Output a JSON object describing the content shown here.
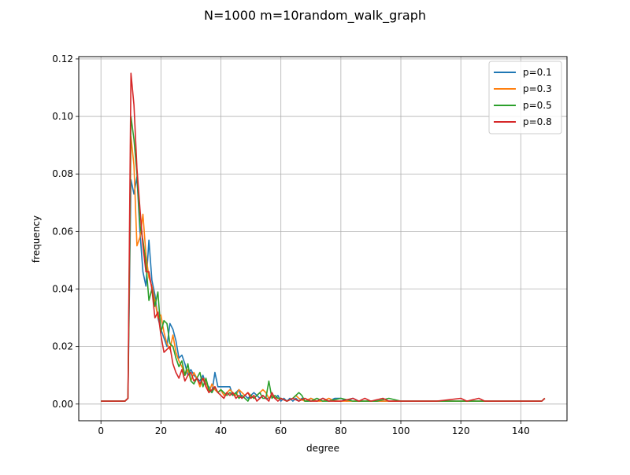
{
  "chart_data": {
    "type": "line",
    "title": "N=1000 m=10random_walk_graph",
    "xlabel": "degree",
    "ylabel": "frequency",
    "xlim": [
      -7.4,
      155.4
    ],
    "ylim": [
      -0.0058,
      0.1208
    ],
    "xticks": [
      0,
      20,
      40,
      60,
      80,
      100,
      120,
      140
    ],
    "xtick_labels": [
      "0",
      "20",
      "40",
      "60",
      "80",
      "100",
      "120",
      "140"
    ],
    "yticks": [
      0.0,
      0.02,
      0.04,
      0.06,
      0.08,
      0.1,
      0.12
    ],
    "ytick_labels": [
      "0.00",
      "0.02",
      "0.04",
      "0.06",
      "0.08",
      "0.10",
      "0.12"
    ],
    "grid": true,
    "legend_position": "top-right",
    "series": [
      {
        "name": "p=0.1",
        "color": "#1f77b4",
        "points": [
          [
            0,
            0.001
          ],
          [
            8,
            0.001
          ],
          [
            9,
            0.002
          ],
          [
            10,
            0.078
          ],
          [
            11,
            0.073
          ],
          [
            12,
            0.079
          ],
          [
            13,
            0.06
          ],
          [
            14,
            0.046
          ],
          [
            15,
            0.041
          ],
          [
            16,
            0.057
          ],
          [
            17,
            0.043
          ],
          [
            18,
            0.038
          ],
          [
            19,
            0.03
          ],
          [
            20,
            0.026
          ],
          [
            21,
            0.023
          ],
          [
            22,
            0.02
          ],
          [
            23,
            0.028
          ],
          [
            24,
            0.026
          ],
          [
            25,
            0.022
          ],
          [
            26,
            0.016
          ],
          [
            27,
            0.017
          ],
          [
            28,
            0.014
          ],
          [
            29,
            0.01
          ],
          [
            30,
            0.012
          ],
          [
            31,
            0.01
          ],
          [
            32,
            0.009
          ],
          [
            33,
            0.008
          ],
          [
            34,
            0.01
          ],
          [
            35,
            0.007
          ],
          [
            36,
            0.006
          ],
          [
            37,
            0.004
          ],
          [
            38,
            0.011
          ],
          [
            39,
            0.006
          ],
          [
            40,
            0.006
          ],
          [
            41,
            0.006
          ],
          [
            42,
            0.006
          ],
          [
            43,
            0.006
          ],
          [
            44,
            0.003
          ],
          [
            45,
            0.004
          ],
          [
            46,
            0.005
          ],
          [
            47,
            0.002
          ],
          [
            48,
            0.003
          ],
          [
            49,
            0.002
          ],
          [
            50,
            0.003
          ],
          [
            51,
            0.004
          ],
          [
            52,
            0.003
          ],
          [
            53,
            0.002
          ],
          [
            54,
            0.003
          ],
          [
            55,
            0.002
          ],
          [
            56,
            0.002
          ],
          [
            57,
            0.003
          ],
          [
            58,
            0.002
          ],
          [
            59,
            0.003
          ],
          [
            60,
            0.001
          ],
          [
            61,
            0.002
          ],
          [
            62,
            0.001
          ],
          [
            63,
            0.002
          ],
          [
            64,
            0.001
          ],
          [
            65,
            0.002
          ],
          [
            66,
            0.001
          ],
          [
            67,
            0.002
          ],
          [
            68,
            0.001
          ],
          [
            69,
            0.001
          ],
          [
            70,
            0.002
          ],
          [
            72,
            0.001
          ],
          [
            74,
            0.002
          ],
          [
            76,
            0.001
          ],
          [
            78,
            0.002
          ],
          [
            80,
            0.002
          ],
          [
            82,
            0.001
          ],
          [
            84,
            0.002
          ],
          [
            86,
            0.001
          ],
          [
            90,
            0.001
          ],
          [
            94,
            0.001
          ],
          [
            100,
            0.001
          ],
          [
            110,
            0.001
          ],
          [
            120,
            0.001
          ],
          [
            130,
            0.001
          ],
          [
            140,
            0.001
          ],
          [
            147,
            0.001
          ],
          [
            148,
            0.002
          ]
        ]
      },
      {
        "name": "p=0.3",
        "color": "#ff7f0e",
        "points": [
          [
            0,
            0.001
          ],
          [
            8,
            0.001
          ],
          [
            9,
            0.002
          ],
          [
            10,
            0.093
          ],
          [
            11,
            0.083
          ],
          [
            12,
            0.055
          ],
          [
            13,
            0.058
          ],
          [
            14,
            0.066
          ],
          [
            15,
            0.052
          ],
          [
            16,
            0.044
          ],
          [
            17,
            0.041
          ],
          [
            18,
            0.036
          ],
          [
            19,
            0.03
          ],
          [
            20,
            0.031
          ],
          [
            21,
            0.025
          ],
          [
            22,
            0.021
          ],
          [
            23,
            0.019
          ],
          [
            24,
            0.024
          ],
          [
            25,
            0.018
          ],
          [
            26,
            0.015
          ],
          [
            27,
            0.013
          ],
          [
            28,
            0.01
          ],
          [
            29,
            0.012
          ],
          [
            30,
            0.008
          ],
          [
            31,
            0.011
          ],
          [
            32,
            0.009
          ],
          [
            33,
            0.006
          ],
          [
            34,
            0.009
          ],
          [
            35,
            0.008
          ],
          [
            36,
            0.004
          ],
          [
            37,
            0.007
          ],
          [
            38,
            0.005
          ],
          [
            39,
            0.004
          ],
          [
            40,
            0.005
          ],
          [
            41,
            0.003
          ],
          [
            42,
            0.004
          ],
          [
            43,
            0.005
          ],
          [
            44,
            0.004
          ],
          [
            45,
            0.003
          ],
          [
            46,
            0.005
          ],
          [
            47,
            0.004
          ],
          [
            48,
            0.003
          ],
          [
            49,
            0.004
          ],
          [
            50,
            0.003
          ],
          [
            51,
            0.002
          ],
          [
            52,
            0.003
          ],
          [
            53,
            0.004
          ],
          [
            54,
            0.005
          ],
          [
            55,
            0.004
          ],
          [
            56,
            0.002
          ],
          [
            57,
            0.003
          ],
          [
            58,
            0.002
          ],
          [
            60,
            0.002
          ],
          [
            62,
            0.001
          ],
          [
            64,
            0.002
          ],
          [
            65,
            0.003
          ],
          [
            66,
            0.002
          ],
          [
            68,
            0.001
          ],
          [
            70,
            0.002
          ],
          [
            72,
            0.001
          ],
          [
            74,
            0.001
          ],
          [
            76,
            0.002
          ],
          [
            78,
            0.001
          ],
          [
            80,
            0.001
          ],
          [
            84,
            0.001
          ],
          [
            90,
            0.001
          ],
          [
            100,
            0.001
          ],
          [
            110,
            0.001
          ],
          [
            120,
            0.001
          ],
          [
            130,
            0.001
          ],
          [
            140,
            0.001
          ],
          [
            147,
            0.001
          ],
          [
            148,
            0.002
          ]
        ]
      },
      {
        "name": "p=0.5",
        "color": "#2ca02c",
        "points": [
          [
            0,
            0.001
          ],
          [
            8,
            0.001
          ],
          [
            9,
            0.002
          ],
          [
            10,
            0.1
          ],
          [
            11,
            0.092
          ],
          [
            12,
            0.08
          ],
          [
            13,
            0.062
          ],
          [
            14,
            0.057
          ],
          [
            15,
            0.049
          ],
          [
            16,
            0.036
          ],
          [
            17,
            0.04
          ],
          [
            18,
            0.034
          ],
          [
            19,
            0.039
          ],
          [
            20,
            0.025
          ],
          [
            21,
            0.029
          ],
          [
            22,
            0.028
          ],
          [
            23,
            0.021
          ],
          [
            24,
            0.02
          ],
          [
            25,
            0.016
          ],
          [
            26,
            0.013
          ],
          [
            27,
            0.015
          ],
          [
            28,
            0.01
          ],
          [
            29,
            0.014
          ],
          [
            30,
            0.008
          ],
          [
            31,
            0.007
          ],
          [
            32,
            0.009
          ],
          [
            33,
            0.011
          ],
          [
            34,
            0.006
          ],
          [
            35,
            0.009
          ],
          [
            36,
            0.005
          ],
          [
            37,
            0.004
          ],
          [
            38,
            0.006
          ],
          [
            39,
            0.004
          ],
          [
            40,
            0.005
          ],
          [
            41,
            0.004
          ],
          [
            42,
            0.003
          ],
          [
            43,
            0.004
          ],
          [
            44,
            0.003
          ],
          [
            45,
            0.004
          ],
          [
            46,
            0.002
          ],
          [
            47,
            0.003
          ],
          [
            48,
            0.002
          ],
          [
            49,
            0.001
          ],
          [
            50,
            0.003
          ],
          [
            51,
            0.002
          ],
          [
            52,
            0.003
          ],
          [
            53,
            0.004
          ],
          [
            54,
            0.002
          ],
          [
            55,
            0.002
          ],
          [
            56,
            0.008
          ],
          [
            57,
            0.002
          ],
          [
            58,
            0.003
          ],
          [
            59,
            0.002
          ],
          [
            60,
            0.002
          ],
          [
            62,
            0.001
          ],
          [
            64,
            0.002
          ],
          [
            66,
            0.004
          ],
          [
            67,
            0.003
          ],
          [
            68,
            0.001
          ],
          [
            70,
            0.001
          ],
          [
            72,
            0.002
          ],
          [
            74,
            0.001
          ],
          [
            76,
            0.001
          ],
          [
            80,
            0.002
          ],
          [
            84,
            0.001
          ],
          [
            88,
            0.001
          ],
          [
            92,
            0.001
          ],
          [
            96,
            0.002
          ],
          [
            100,
            0.001
          ],
          [
            104,
            0.001
          ],
          [
            108,
            0.001
          ],
          [
            112,
            0.001
          ],
          [
            120,
            0.001
          ],
          [
            130,
            0.001
          ],
          [
            140,
            0.001
          ],
          [
            147,
            0.001
          ],
          [
            148,
            0.002
          ]
        ]
      },
      {
        "name": "p=0.8",
        "color": "#d62728",
        "points": [
          [
            0,
            0.001
          ],
          [
            8,
            0.001
          ],
          [
            9,
            0.002
          ],
          [
            10,
            0.115
          ],
          [
            11,
            0.104
          ],
          [
            12,
            0.082
          ],
          [
            13,
            0.068
          ],
          [
            14,
            0.055
          ],
          [
            15,
            0.046
          ],
          [
            16,
            0.046
          ],
          [
            17,
            0.04
          ],
          [
            18,
            0.03
          ],
          [
            19,
            0.032
          ],
          [
            20,
            0.024
          ],
          [
            21,
            0.018
          ],
          [
            22,
            0.019
          ],
          [
            23,
            0.02
          ],
          [
            24,
            0.014
          ],
          [
            25,
            0.011
          ],
          [
            26,
            0.009
          ],
          [
            27,
            0.012
          ],
          [
            28,
            0.008
          ],
          [
            29,
            0.01
          ],
          [
            30,
            0.011
          ],
          [
            31,
            0.008
          ],
          [
            32,
            0.009
          ],
          [
            33,
            0.007
          ],
          [
            34,
            0.009
          ],
          [
            35,
            0.006
          ],
          [
            36,
            0.004
          ],
          [
            37,
            0.005
          ],
          [
            38,
            0.006
          ],
          [
            39,
            0.004
          ],
          [
            40,
            0.003
          ],
          [
            41,
            0.002
          ],
          [
            42,
            0.004
          ],
          [
            43,
            0.003
          ],
          [
            44,
            0.004
          ],
          [
            45,
            0.002
          ],
          [
            46,
            0.003
          ],
          [
            47,
            0.002
          ],
          [
            48,
            0.003
          ],
          [
            49,
            0.004
          ],
          [
            50,
            0.002
          ],
          [
            51,
            0.003
          ],
          [
            52,
            0.001
          ],
          [
            53,
            0.002
          ],
          [
            54,
            0.003
          ],
          [
            55,
            0.002
          ],
          [
            56,
            0.001
          ],
          [
            57,
            0.004
          ],
          [
            58,
            0.002
          ],
          [
            59,
            0.001
          ],
          [
            60,
            0.002
          ],
          [
            62,
            0.001
          ],
          [
            64,
            0.002
          ],
          [
            66,
            0.001
          ],
          [
            68,
            0.002
          ],
          [
            70,
            0.001
          ],
          [
            72,
            0.001
          ],
          [
            74,
            0.002
          ],
          [
            76,
            0.001
          ],
          [
            78,
            0.001
          ],
          [
            80,
            0.001
          ],
          [
            84,
            0.002
          ],
          [
            86,
            0.001
          ],
          [
            88,
            0.002
          ],
          [
            90,
            0.001
          ],
          [
            94,
            0.002
          ],
          [
            96,
            0.001
          ],
          [
            100,
            0.001
          ],
          [
            104,
            0.001
          ],
          [
            108,
            0.001
          ],
          [
            112,
            0.001
          ],
          [
            120,
            0.002
          ],
          [
            122,
            0.001
          ],
          [
            126,
            0.002
          ],
          [
            128,
            0.001
          ],
          [
            140,
            0.001
          ],
          [
            147,
            0.001
          ],
          [
            148,
            0.002
          ]
        ]
      }
    ]
  }
}
